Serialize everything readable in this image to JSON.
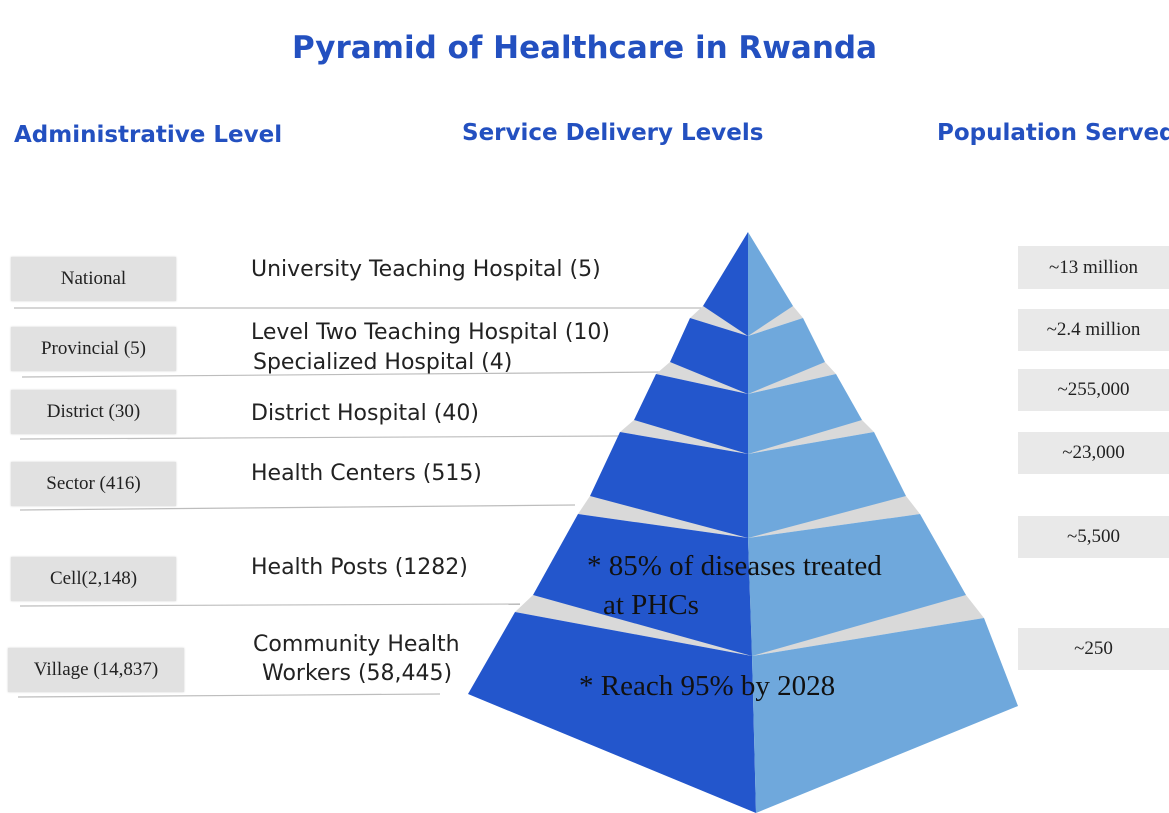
{
  "title": "Pyramid of Healthcare in Rwanda",
  "headers": {
    "administrative": "Administrative Level",
    "service": "Service Delivery Levels",
    "population": "Population Served"
  },
  "levels": [
    {
      "admin": "National",
      "service": [
        "University Teaching Hospital (5)"
      ],
      "population": "~13 million"
    },
    {
      "admin": "Provincial (5)",
      "service": [
        "Level Two Teaching Hospital (10)",
        "Specialized Hospital (4)"
      ],
      "population": "~2.4 million"
    },
    {
      "admin": "District (30)",
      "service": [
        "District Hospital (40)"
      ],
      "population": "~255,000"
    },
    {
      "admin": "Sector (416)",
      "service": [
        "Health Centers (515)"
      ],
      "population": "~23,000"
    },
    {
      "admin": "Cell(2,148)",
      "service": [
        "Health Posts (1282)"
      ],
      "population": "~5,500"
    },
    {
      "admin": "Village (14,837)",
      "service": [
        "Community Health",
        "Workers (58,445)"
      ],
      "population": "~250"
    }
  ],
  "notes": {
    "diseases_line1": "* 85% of diseases treated",
    "diseases_line2": "at PHCs",
    "reach": "* Reach 95% by 2028"
  },
  "colors": {
    "title": "#2350c0",
    "pyramid_dark": "#2356cc",
    "pyramid_light": "#6fa8dc",
    "separator": "#d9d9d9",
    "box": "#e1e1e1"
  }
}
